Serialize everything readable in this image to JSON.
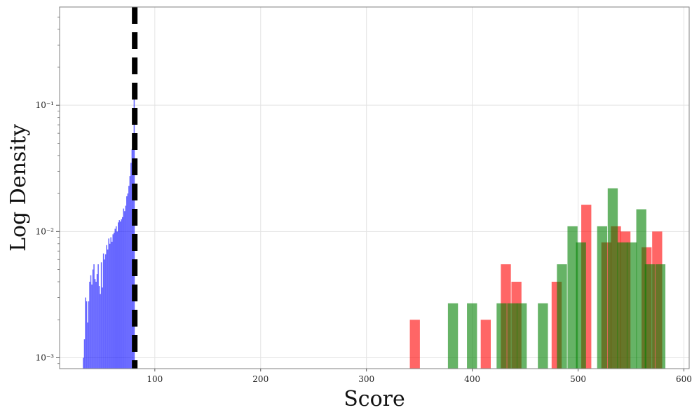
{
  "chart_data": {
    "type": "bar",
    "title": "",
    "xlabel": "Score",
    "ylabel": "Log Density",
    "xlim": [
      10,
      605
    ],
    "ylim": [
      0.00082,
      0.6
    ],
    "yscale": "log",
    "grid": true,
    "legend": "none",
    "x_ticks": [
      100,
      200,
      300,
      400,
      500,
      600
    ],
    "y_ticks": [
      {
        "value": 0.001,
        "label": "10⁻³"
      },
      {
        "value": 0.01,
        "label": "10⁻²"
      },
      {
        "value": 0.1,
        "label": "10⁻¹"
      }
    ],
    "threshold_line": {
      "x": 81,
      "style": "dashed",
      "color": "#000000"
    },
    "series": [
      {
        "color": "#0000ff",
        "opacity": 0.6,
        "bin_width": 1,
        "bins": [
          [
            32,
            0.001
          ],
          [
            33,
            0.0014
          ],
          [
            34,
            0.003
          ],
          [
            35,
            0.0028
          ],
          [
            36,
            0.0019
          ],
          [
            37,
            0.0028
          ],
          [
            38,
            0.004
          ],
          [
            39,
            0.0045
          ],
          [
            40,
            0.0038
          ],
          [
            41,
            0.005
          ],
          [
            42,
            0.0055
          ],
          [
            43,
            0.0042
          ],
          [
            44,
            0.004
          ],
          [
            45,
            0.0046
          ],
          [
            46,
            0.0055
          ],
          [
            47,
            0.0037
          ],
          [
            48,
            0.0032
          ],
          [
            49,
            0.0057
          ],
          [
            50,
            0.0036
          ],
          [
            51,
            0.0067
          ],
          [
            52,
            0.006
          ],
          [
            53,
            0.0066
          ],
          [
            54,
            0.0078
          ],
          [
            55,
            0.0072
          ],
          [
            56,
            0.0088
          ],
          [
            57,
            0.008
          ],
          [
            58,
            0.009
          ],
          [
            59,
            0.0083
          ],
          [
            60,
            0.0095
          ],
          [
            61,
            0.0098
          ],
          [
            62,
            0.0105
          ],
          [
            63,
            0.011
          ],
          [
            64,
            0.01
          ],
          [
            65,
            0.0118
          ],
          [
            66,
            0.0123
          ],
          [
            67,
            0.012
          ],
          [
            68,
            0.0125
          ],
          [
            69,
            0.013
          ],
          [
            70,
            0.0152
          ],
          [
            71,
            0.0145
          ],
          [
            72,
            0.016
          ],
          [
            73,
            0.019
          ],
          [
            74,
            0.02
          ],
          [
            75,
            0.023
          ],
          [
            76,
            0.0275
          ],
          [
            77,
            0.035
          ],
          [
            78,
            0.045
          ],
          [
            79,
            0.055
          ],
          [
            80,
            0.13
          ]
        ]
      },
      {
        "color": "#ff0000",
        "opacity": 0.6,
        "bin_width": 9.5,
        "bins": [
          [
            341,
            0.002
          ],
          [
            408,
            0.002
          ],
          [
            427,
            0.0055
          ],
          [
            437,
            0.004
          ],
          [
            475,
            0.004
          ],
          [
            503,
            0.0163
          ],
          [
            522,
            0.0082
          ],
          [
            531,
            0.011
          ],
          [
            540,
            0.01
          ],
          [
            560,
            0.0075
          ],
          [
            570,
            0.01
          ]
        ]
      },
      {
        "color": "#008000",
        "opacity": 0.6,
        "bin_width": 9.5,
        "bins": [
          [
            377,
            0.0027
          ],
          [
            395,
            0.0027
          ],
          [
            423,
            0.0027
          ],
          [
            433,
            0.0027
          ],
          [
            442,
            0.0027
          ],
          [
            462,
            0.0027
          ],
          [
            480,
            0.0055
          ],
          [
            490,
            0.011
          ],
          [
            498,
            0.0082
          ],
          [
            518,
            0.011
          ],
          [
            528,
            0.022
          ],
          [
            537,
            0.0082
          ],
          [
            546,
            0.0082
          ],
          [
            555,
            0.015
          ],
          [
            563,
            0.0055
          ],
          [
            573,
            0.0055
          ]
        ]
      }
    ]
  }
}
